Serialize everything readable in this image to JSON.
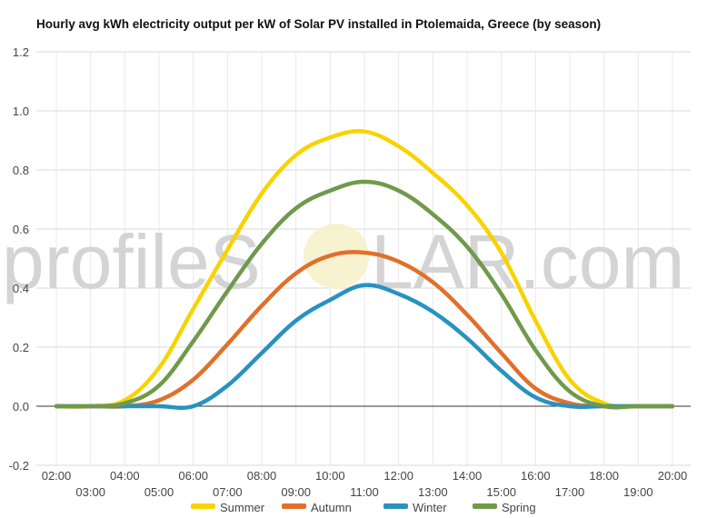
{
  "watermark": {
    "left": "profileS",
    "right": "LAR.com"
  },
  "chart_data": {
    "type": "line",
    "title": "Hourly avg kWh electricity output per kW of Solar PV installed in Ptolemaida, Greece (by season)",
    "xlabel": "",
    "ylabel": "",
    "ylim": [
      -0.2,
      1.2
    ],
    "yticks": [
      "-0.2",
      "0.0",
      "0.2",
      "0.4",
      "0.6",
      "0.8",
      "1.0",
      "1.2"
    ],
    "x": [
      "02:00",
      "03:00",
      "04:00",
      "05:00",
      "06:00",
      "07:00",
      "08:00",
      "09:00",
      "10:00",
      "11:00",
      "12:00",
      "13:00",
      "14:00",
      "15:00",
      "16:00",
      "17:00",
      "18:00",
      "19:00",
      "20:00"
    ],
    "grid": true,
    "legend_position": "bottom",
    "series": [
      {
        "name": "Summer",
        "color": "#f7d300",
        "values": [
          0.0,
          0.0,
          0.02,
          0.13,
          0.33,
          0.53,
          0.72,
          0.85,
          0.91,
          0.93,
          0.88,
          0.79,
          0.68,
          0.52,
          0.29,
          0.09,
          0.01,
          0.0,
          0.0
        ]
      },
      {
        "name": "Autumn",
        "color": "#e0702a",
        "values": [
          0.0,
          0.0,
          0.0,
          0.02,
          0.09,
          0.21,
          0.34,
          0.45,
          0.51,
          0.52,
          0.49,
          0.42,
          0.31,
          0.18,
          0.06,
          0.01,
          0.0,
          0.0,
          0.0
        ]
      },
      {
        "name": "Winter",
        "color": "#2892c0",
        "values": [
          0.0,
          0.0,
          0.0,
          0.0,
          0.0,
          0.07,
          0.18,
          0.29,
          0.36,
          0.41,
          0.38,
          0.32,
          0.23,
          0.12,
          0.03,
          0.0,
          0.0,
          0.0,
          0.0
        ]
      },
      {
        "name": "Spring",
        "color": "#6f9a4b",
        "values": [
          0.0,
          0.0,
          0.01,
          0.07,
          0.22,
          0.39,
          0.55,
          0.67,
          0.73,
          0.76,
          0.73,
          0.65,
          0.54,
          0.38,
          0.19,
          0.05,
          0.0,
          0.0,
          0.0
        ]
      }
    ]
  }
}
